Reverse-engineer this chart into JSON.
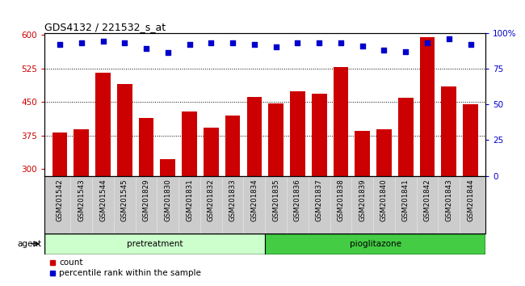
{
  "title": "GDS4132 / 221532_s_at",
  "samples": [
    "GSM201542",
    "GSM201543",
    "GSM201544",
    "GSM201545",
    "GSM201829",
    "GSM201830",
    "GSM201831",
    "GSM201832",
    "GSM201833",
    "GSM201834",
    "GSM201835",
    "GSM201836",
    "GSM201837",
    "GSM201838",
    "GSM201839",
    "GSM201840",
    "GSM201841",
    "GSM201842",
    "GSM201843",
    "GSM201844"
  ],
  "counts": [
    383,
    390,
    516,
    490,
    415,
    323,
    430,
    393,
    420,
    462,
    447,
    475,
    468,
    528,
    385,
    390,
    460,
    595,
    485,
    445
  ],
  "percentiles": [
    92,
    93,
    94,
    93,
    89,
    86,
    92,
    93,
    93,
    92,
    90,
    93,
    93,
    93,
    91,
    88,
    87,
    93,
    96,
    92
  ],
  "pretreatment_label": "pretreatment",
  "pioglitazone_label": "pioglitazone",
  "agent_label": "agent",
  "ylim_left": [
    285,
    605
  ],
  "ylim_right": [
    0,
    100
  ],
  "yticks_left": [
    300,
    375,
    450,
    525,
    600
  ],
  "yticks_right": [
    0,
    25,
    50,
    75,
    100
  ],
  "bar_color": "#cc0000",
  "dot_color": "#0000cc",
  "pretreat_color": "#ccffcc",
  "piogli_color": "#44cc44",
  "tick_bg_color": "#cccccc",
  "n_pretreat": 10,
  "n_piogli": 10
}
